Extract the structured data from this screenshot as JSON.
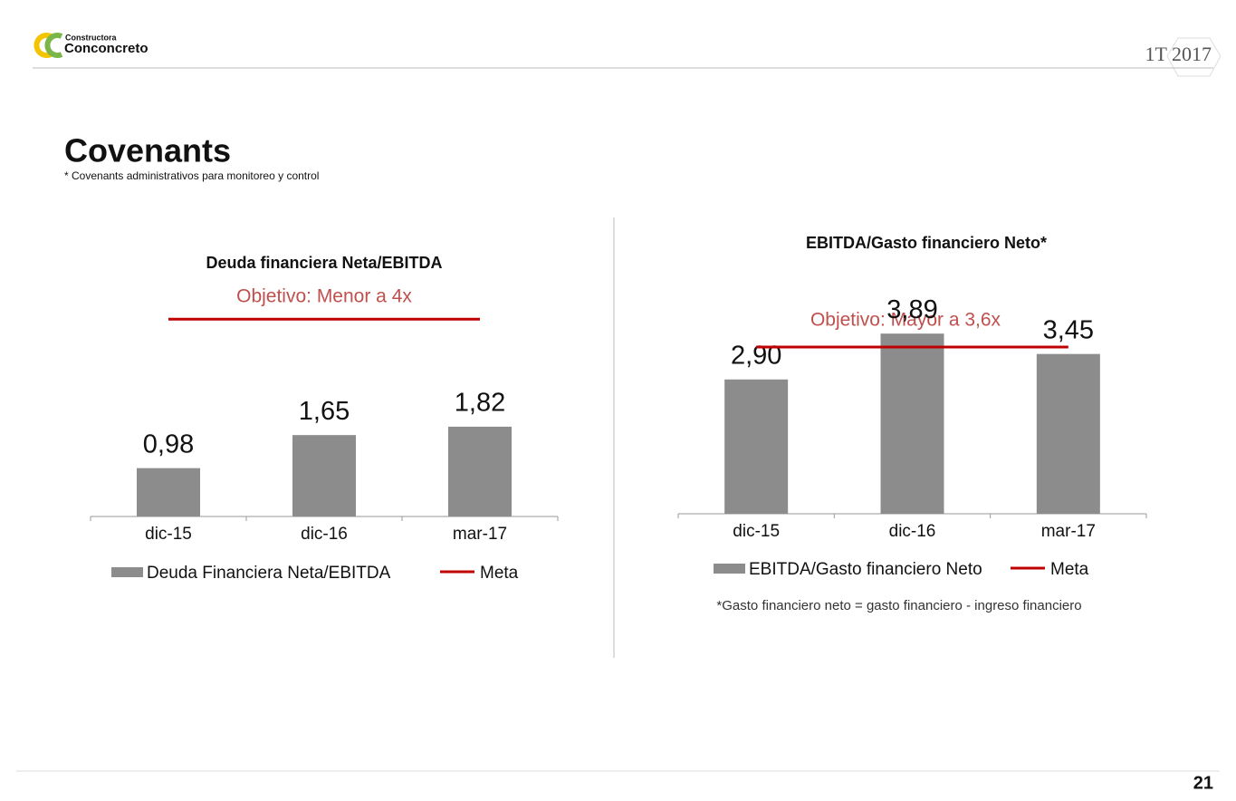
{
  "header": {
    "brand_small": "Constructora",
    "brand": "Conconcreto",
    "period": "1T 2017"
  },
  "title": "Covenants",
  "subtitle": "* Covenants administrativos para monitoreo y control",
  "page_number": "21",
  "chart_data": [
    {
      "type": "bar",
      "title": "Deuda financiera Neta/EBITDA",
      "subtitle": "Objetivo: Menor a 4x",
      "categories": [
        "dic-15",
        "dic-16",
        "mar-17"
      ],
      "series": [
        {
          "name": "Deuda Financiera Neta/EBITDA",
          "color": "#8c8c8c",
          "values": [
            0.98,
            1.65,
            1.82
          ],
          "value_labels": [
            "0,98",
            "1,65",
            "1,82"
          ]
        },
        {
          "name": "Meta",
          "type": "line",
          "color": "#c00000",
          "values": [
            4,
            4,
            4
          ]
        }
      ],
      "ylim": [
        0,
        4.5
      ]
    },
    {
      "type": "bar",
      "title": "EBITDA/Gasto financiero Neto*",
      "subtitle": "Objetivo: Mayor a 3,6x",
      "categories": [
        "dic-15",
        "dic-16",
        "mar-17"
      ],
      "series": [
        {
          "name": "EBITDA/Gasto financiero Neto",
          "color": "#8c8c8c",
          "values": [
            2.9,
            3.89,
            3.45
          ],
          "value_labels": [
            "2,90",
            "3,89",
            "3,45"
          ]
        },
        {
          "name": "Meta",
          "type": "line",
          "color": "#c00000",
          "values": [
            3.6,
            3.6,
            3.6
          ]
        }
      ],
      "ylim": [
        0,
        4.5
      ],
      "note": "*Gasto financiero neto = gasto financiero - ingreso financiero"
    }
  ]
}
